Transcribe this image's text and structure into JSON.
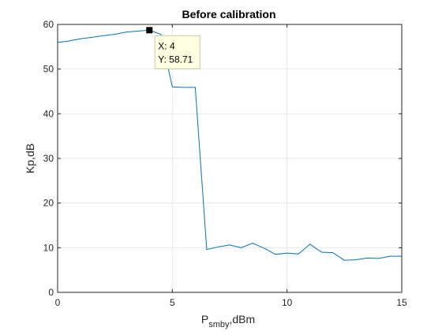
{
  "chart_data": {
    "type": "line",
    "title": "Before calibration",
    "xlabel": {
      "main": "P",
      "subscript": "smby",
      "suffix": ",dBm"
    },
    "ylabel": "Kp,dB",
    "xlim": [
      0,
      15
    ],
    "ylim": [
      0,
      60
    ],
    "x_ticks": [
      0,
      5,
      10,
      15
    ],
    "y_ticks": [
      0,
      10,
      20,
      30,
      40,
      50,
      60
    ],
    "grid": true,
    "series": [
      {
        "color": "#0072BD",
        "x": [
          0,
          0.5,
          1,
          1.5,
          2,
          2.5,
          3,
          3.5,
          4,
          4.5,
          5,
          5.5,
          6,
          6.5,
          7,
          7.5,
          8,
          8.5,
          9,
          9.5,
          10,
          10.5,
          11,
          11.5,
          12,
          12.5,
          13,
          13.5,
          14,
          14.5,
          15
        ],
        "y": [
          56.0,
          56.3,
          56.8,
          57.1,
          57.5,
          57.8,
          58.3,
          58.5,
          58.71,
          57.8,
          46.0,
          45.9,
          45.9,
          9.6,
          10.2,
          10.6,
          10.0,
          11.0,
          9.9,
          8.5,
          8.8,
          8.6,
          10.8,
          9.0,
          8.9,
          7.2,
          7.3,
          7.7,
          7.6,
          8.1,
          8.1
        ]
      }
    ],
    "datatip": {
      "x": 4,
      "y": 58.71,
      "x_text": "X: 4",
      "y_text": "Y: 58.71"
    }
  }
}
